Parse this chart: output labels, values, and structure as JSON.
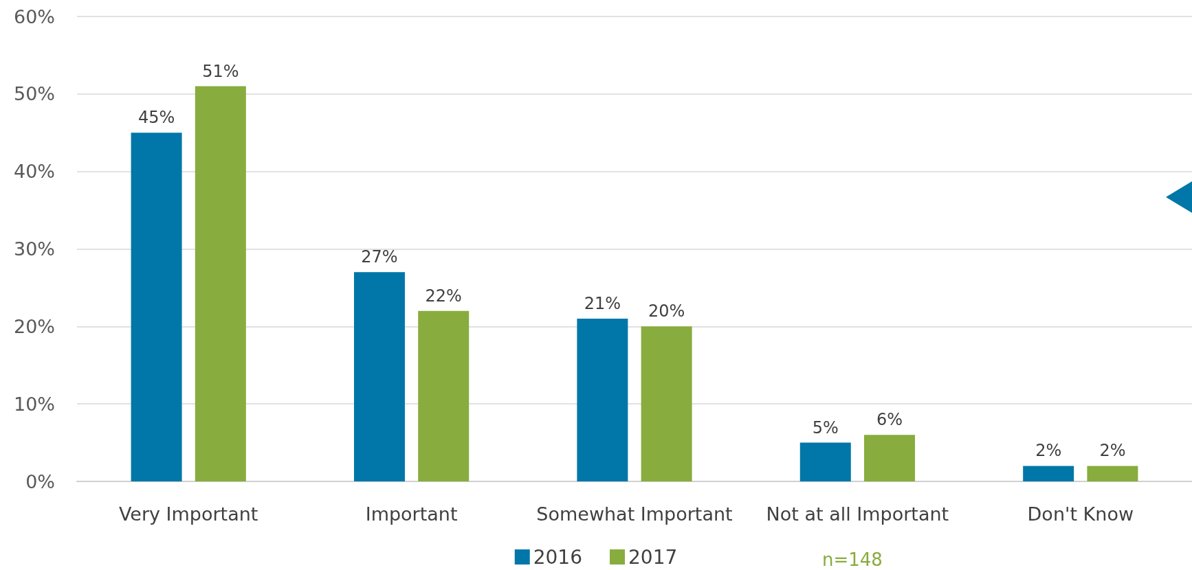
{
  "chart_data": {
    "type": "bar",
    "categories": [
      "Very Important",
      "Important",
      "Somewhat Important",
      "Not at all Important",
      "Don't Know"
    ],
    "series": [
      {
        "name": "2016",
        "color": "#0077a8",
        "values": [
          45,
          27,
          21,
          5,
          2
        ],
        "value_labels": [
          "45%",
          "27%",
          "21%",
          "5%",
          "2%"
        ]
      },
      {
        "name": "2017",
        "color": "#88ac3e",
        "values": [
          51,
          22,
          20,
          6,
          2
        ],
        "value_labels": [
          "51%",
          "22%",
          "20%",
          "6%",
          "2%"
        ]
      }
    ],
    "ylim": [
      0,
      60
    ],
    "yticks": [
      {
        "value": 0,
        "label": "0%"
      },
      {
        "value": 10,
        "label": "10%"
      },
      {
        "value": 20,
        "label": "20%"
      },
      {
        "value": 30,
        "label": "30%"
      },
      {
        "value": 40,
        "label": "40%"
      },
      {
        "value": 50,
        "label": "50%"
      },
      {
        "value": 60,
        "label": "60%"
      }
    ],
    "grid": "y",
    "legend": "bottom",
    "annotations": [
      "n=148"
    ]
  }
}
